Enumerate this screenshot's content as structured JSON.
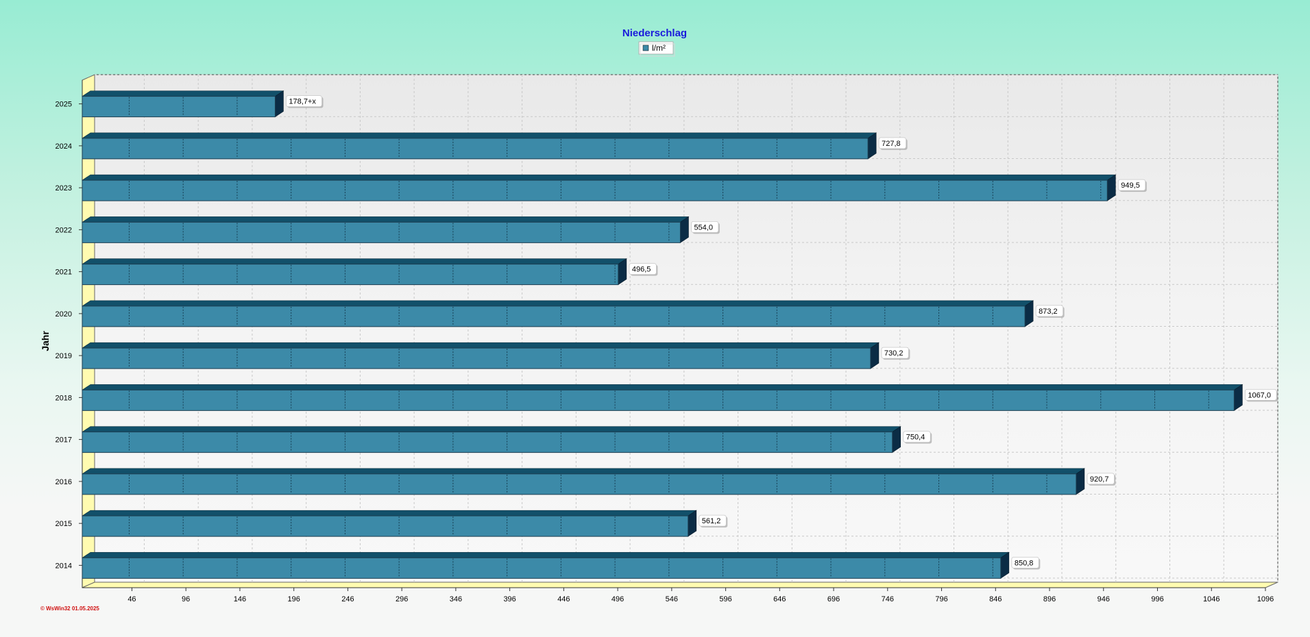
{
  "chart_data": {
    "type": "bar",
    "orientation": "horizontal",
    "title": "Niederschlag",
    "ylabel": "Jahr",
    "xlabel": "",
    "legend": {
      "entries": [
        "l/m²"
      ],
      "placement": "top-center"
    },
    "categories": [
      "2025",
      "2024",
      "2023",
      "2022",
      "2021",
      "2020",
      "2019",
      "2018",
      "2017",
      "2016",
      "2015",
      "2014"
    ],
    "series": [
      {
        "name": "l/m²",
        "values": [
          178.7,
          727.8,
          949.5,
          554.0,
          496.5,
          873.2,
          730.2,
          1067.0,
          750.4,
          920.7,
          561.2,
          850.8
        ],
        "labels": [
          "178,7+x",
          "727,8",
          "949,5",
          "554,0",
          "496,5",
          "873,2",
          "730,2",
          "1067,0",
          "750,4",
          "920,7",
          "561,2",
          "850,8"
        ]
      }
    ],
    "xlim": [
      0,
      1096
    ],
    "x_ticks": [
      "46",
      "96",
      "146",
      "196",
      "246",
      "296",
      "346",
      "396",
      "446",
      "496",
      "546",
      "596",
      "646",
      "696",
      "746",
      "796",
      "846",
      "896",
      "946",
      "996",
      "1046",
      "1096"
    ],
    "x_tick_values": [
      46,
      96,
      146,
      196,
      246,
      296,
      346,
      396,
      446,
      496,
      546,
      596,
      646,
      696,
      746,
      796,
      846,
      896,
      946,
      996,
      1046,
      1096
    ],
    "grid": true,
    "colors": {
      "bar_front": "#3c8aa8",
      "bar_top": "#12506a",
      "bar_side": "#0b2c45",
      "title": "#1a1adb",
      "floor": "#fffbb0",
      "watermark": "#d01010"
    }
  },
  "watermark": "© WsWin32  01.05.2025"
}
